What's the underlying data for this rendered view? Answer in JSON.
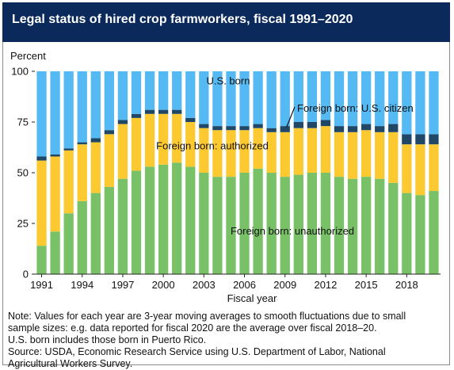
{
  "title": "Legal status of hired crop farmworkers, fiscal 1991–2020",
  "colors": {
    "unauthorized": "#79c167",
    "authorized": "#fdc931",
    "citizen": "#214766",
    "usborn": "#55b9f3",
    "title_bg": "#0b2a5b"
  },
  "chart_data": {
    "type": "bar",
    "stacked": true,
    "ylabel": "Percent",
    "xlabel": "Fiscal year",
    "ylim": [
      0,
      100
    ],
    "yticks": [
      0,
      25,
      50,
      75,
      100
    ],
    "xtick_labels": [
      "1991",
      "1994",
      "1997",
      "2000",
      "2003",
      "2006",
      "2009",
      "2012",
      "2015",
      "2018"
    ],
    "categories": [
      "1991",
      "1992",
      "1993",
      "1994",
      "1995",
      "1996",
      "1997",
      "1998",
      "1999",
      "2000",
      "2001",
      "2002",
      "2003",
      "2004",
      "2005",
      "2006",
      "2007",
      "2008",
      "2009",
      "2010",
      "2011",
      "2012",
      "2013",
      "2014",
      "2015",
      "2016",
      "2017",
      "2018",
      "2019",
      "2020"
    ],
    "series": [
      {
        "name": "Foreign born: unauthorized",
        "color_key": "unauthorized",
        "values": [
          14,
          21,
          30,
          36,
          40,
          43,
          47,
          51,
          53,
          54,
          55,
          53,
          50,
          48,
          48,
          50,
          52,
          50,
          48,
          49,
          50,
          50,
          48,
          47,
          48,
          47,
          45,
          40,
          39,
          41
        ]
      },
      {
        "name": "Foreign born: authorized",
        "color_key": "authorized",
        "values": [
          42,
          37,
          31,
          28,
          25,
          26,
          27,
          26,
          26,
          25,
          24,
          22,
          22,
          23,
          23,
          21,
          20,
          20,
          22,
          23,
          22,
          23,
          22,
          23,
          23,
          23,
          25,
          24,
          25,
          23
        ]
      },
      {
        "name": "Foreign born: U.S. citizen",
        "color_key": "citizen",
        "values": [
          2,
          1,
          1,
          1,
          2,
          2,
          2,
          2,
          2,
          2,
          2,
          2,
          2,
          2,
          2,
          2,
          2,
          2,
          3,
          3,
          3,
          3,
          3,
          3,
          3,
          3,
          4,
          5,
          5,
          5
        ]
      },
      {
        "name": "U.S. born",
        "color_key": "usborn",
        "values": [
          42,
          41,
          38,
          35,
          33,
          29,
          24,
          21,
          19,
          19,
          19,
          23,
          26,
          27,
          27,
          27,
          26,
          28,
          27,
          25,
          25,
          24,
          27,
          27,
          26,
          27,
          26,
          31,
          31,
          31
        ]
      }
    ],
    "annotations": {
      "usborn": "U.S. born",
      "citizen": "Foreign born: U.S. citizen",
      "authorized": "Foreign born: authorized",
      "unauthorized": "Foreign born: unauthorized"
    }
  },
  "notes": [
    "Note: Values for each year are 3-year moving averages to smooth fluctuations due to small",
    "sample sizes: e.g. data reported for fiscal 2020 are the average over fiscal 2018–20.",
    "U.S. born includes those born in Puerto Rico.",
    "Source: USDA, Economic Research Service using U.S. Department of Labor, National",
    "Agricultural Workers Survey."
  ]
}
